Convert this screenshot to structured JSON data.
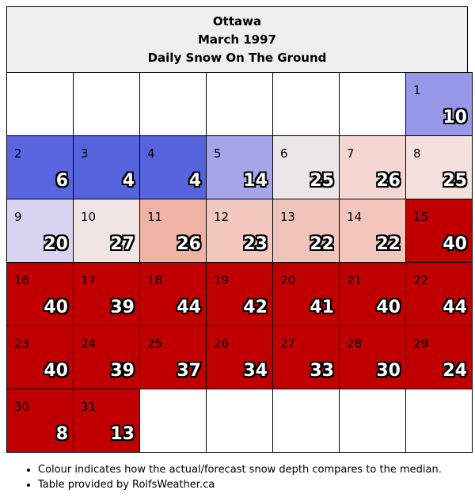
{
  "header": {
    "city": "Ottawa",
    "period": "March 1997",
    "metric": "Daily Snow On The Ground"
  },
  "calendar": {
    "leading_blank_days": 6,
    "days": [
      {
        "day": "1",
        "value": "10",
        "color": "#9898e8"
      },
      {
        "day": "2",
        "value": "6",
        "color": "#5a66df"
      },
      {
        "day": "3",
        "value": "4",
        "color": "#5563dc"
      },
      {
        "day": "4",
        "value": "4",
        "color": "#5563dc"
      },
      {
        "day": "5",
        "value": "14",
        "color": "#a5a5ea"
      },
      {
        "day": "6",
        "value": "25",
        "color": "#ece6e9"
      },
      {
        "day": "7",
        "value": "26",
        "color": "#f4d7d2"
      },
      {
        "day": "8",
        "value": "25",
        "color": "#f4e1dd"
      },
      {
        "day": "9",
        "value": "20",
        "color": "#d6d3ef"
      },
      {
        "day": "10",
        "value": "27",
        "color": "#f1e5e4"
      },
      {
        "day": "11",
        "value": "26",
        "color": "#efb3a5"
      },
      {
        "day": "12",
        "value": "23",
        "color": "#f3c8bf"
      },
      {
        "day": "13",
        "value": "22",
        "color": "#f0c4ba"
      },
      {
        "day": "14",
        "value": "22",
        "color": "#f4c5bb"
      },
      {
        "day": "15",
        "value": "40",
        "color": "#c00000"
      },
      {
        "day": "16",
        "value": "40",
        "color": "#c00000"
      },
      {
        "day": "17",
        "value": "39",
        "color": "#c00000"
      },
      {
        "day": "18",
        "value": "44",
        "color": "#c00000"
      },
      {
        "day": "19",
        "value": "42",
        "color": "#c00000"
      },
      {
        "day": "20",
        "value": "41",
        "color": "#c00000"
      },
      {
        "day": "21",
        "value": "40",
        "color": "#c00000"
      },
      {
        "day": "22",
        "value": "44",
        "color": "#c00000"
      },
      {
        "day": "23",
        "value": "40",
        "color": "#c00000"
      },
      {
        "day": "24",
        "value": "39",
        "color": "#c00000"
      },
      {
        "day": "25",
        "value": "37",
        "color": "#c00000"
      },
      {
        "day": "26",
        "value": "34",
        "color": "#c00000"
      },
      {
        "day": "27",
        "value": "33",
        "color": "#c00000"
      },
      {
        "day": "28",
        "value": "30",
        "color": "#c00000"
      },
      {
        "day": "29",
        "value": "24",
        "color": "#c00000"
      },
      {
        "day": "30",
        "value": "8",
        "color": "#c00000"
      },
      {
        "day": "31",
        "value": "13",
        "color": "#c00000"
      }
    ]
  },
  "notes": [
    "Colour indicates how the actual/forecast snow depth compares to the median.",
    "Table provided by RolfsWeather.ca"
  ]
}
